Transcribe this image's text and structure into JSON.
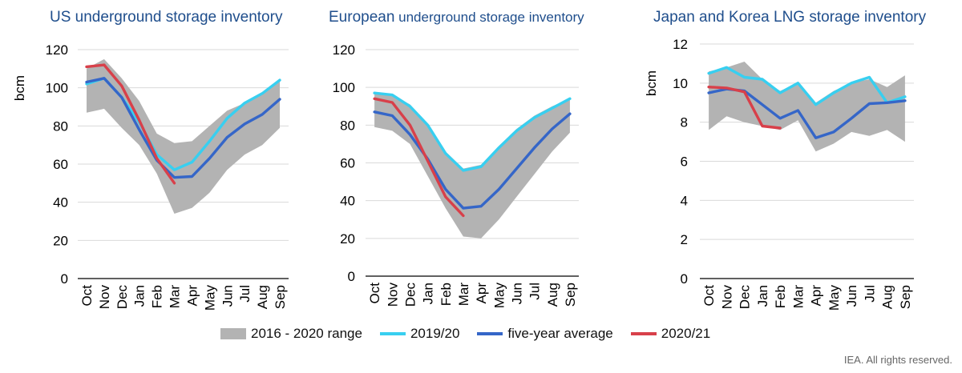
{
  "colors": {
    "range": "#b3b3b3",
    "s2019": "#38cff0",
    "avg": "#3566c8",
    "s2020": "#d8404a",
    "title": "#1f4e8c",
    "grid": "#d9d9d9",
    "axis": "#000000"
  },
  "legend": {
    "range_label": "2016 - 2020 range",
    "s2019_label": "2019/20",
    "avg_label": "five-year average",
    "s2020_label": "2020/21"
  },
  "credit": "IEA. All rights reserved.",
  "chart_data": [
    {
      "type": "line",
      "id": "us",
      "title_parts": [
        "US underground storage inventory"
      ],
      "ylabel": "bcm",
      "ylim": [
        0,
        120
      ],
      "yticks": [
        0,
        20,
        40,
        60,
        80,
        100,
        120
      ],
      "grid": true,
      "categories": [
        "Oct",
        "Nov",
        "Dec",
        "Jan",
        "Feb",
        "Mar",
        "Apr",
        "May",
        "Jun",
        "Jul",
        "Aug",
        "Sep"
      ],
      "range": {
        "name": "2016 - 2020 range",
        "low": [
          87,
          89,
          79,
          70,
          55,
          34,
          37,
          45,
          57,
          65,
          70,
          79
        ],
        "high": [
          110,
          115,
          105,
          93,
          76,
          71,
          72,
          80,
          88,
          92,
          97,
          104
        ]
      },
      "series": [
        {
          "name": "2019/20",
          "key": "s2019",
          "values": [
            102,
            105,
            95,
            82,
            65,
            57,
            61,
            72,
            84,
            92,
            97,
            104
          ]
        },
        {
          "name": "five-year average",
          "key": "avg",
          "values": [
            103,
            105,
            95,
            78,
            62,
            53,
            53.5,
            63,
            74,
            81,
            86,
            94
          ]
        },
        {
          "name": "2020/21",
          "key": "s2020",
          "values": [
            111,
            112,
            101,
            83,
            63,
            50,
            null,
            null,
            null,
            null,
            null,
            null
          ]
        }
      ]
    },
    {
      "type": "line",
      "id": "europe",
      "title_parts": [
        "European",
        "underground storage inventory"
      ],
      "ylabel": "",
      "ylim": [
        0,
        120
      ],
      "yticks": [
        0,
        20,
        40,
        60,
        80,
        100,
        120
      ],
      "grid": true,
      "categories": [
        "Oct",
        "Nov",
        "Dec",
        "Jan",
        "Feb",
        "Mar",
        "Apr",
        "May",
        "Jun",
        "Jul",
        "Aug",
        "Sep"
      ],
      "range": {
        "name": "2016 - 2020 range",
        "low": [
          79,
          77,
          70,
          53,
          36,
          21,
          20,
          30,
          42,
          54,
          66,
          76
        ],
        "high": [
          97,
          96,
          91,
          80,
          66,
          57,
          59,
          69,
          78,
          85,
          90,
          94
        ]
      },
      "series": [
        {
          "name": "2019/20",
          "key": "s2019",
          "values": [
            97,
            96,
            90,
            80,
            65,
            56,
            58,
            68,
            77,
            84,
            89,
            94
          ]
        },
        {
          "name": "five-year average",
          "key": "avg",
          "values": [
            87,
            85,
            75,
            62,
            46,
            36,
            37,
            46,
            57,
            68,
            78,
            86
          ]
        },
        {
          "name": "2020/21",
          "key": "s2020",
          "values": [
            94,
            92,
            80,
            61,
            42,
            32,
            null,
            null,
            null,
            null,
            null,
            null
          ]
        }
      ]
    },
    {
      "type": "line",
      "id": "japan-korea",
      "title_parts": [
        "Japan and Korea LNG storage inventory"
      ],
      "ylabel": "bcm",
      "ylim": [
        0,
        12
      ],
      "yticks": [
        0,
        2,
        4,
        6,
        8,
        10,
        12
      ],
      "grid": true,
      "categories": [
        "Oct",
        "Nov",
        "Dec",
        "Jan",
        "Feb",
        "Mar",
        "Apr",
        "May",
        "Jun",
        "Jul",
        "Aug",
        "Sep"
      ],
      "range": {
        "name": "2016 - 2020 range",
        "low": [
          7.6,
          8.3,
          8.0,
          7.8,
          7.6,
          8.1,
          6.5,
          6.9,
          7.5,
          7.3,
          7.6,
          7.0
        ],
        "high": [
          10.6,
          10.8,
          11.1,
          10.2,
          9.6,
          10.0,
          9.0,
          9.6,
          10.0,
          10.2,
          9.8,
          10.4
        ]
      },
      "series": [
        {
          "name": "2019/20",
          "key": "s2019",
          "values": [
            10.5,
            10.8,
            10.3,
            10.2,
            9.5,
            10.0,
            8.9,
            9.5,
            10.0,
            10.3,
            9.0,
            9.3
          ]
        },
        {
          "name": "five-year average",
          "key": "avg",
          "values": [
            9.5,
            9.7,
            9.6,
            8.9,
            8.2,
            8.6,
            7.2,
            7.5,
            8.2,
            8.95,
            9.0,
            9.1
          ]
        },
        {
          "name": "2020/21",
          "key": "s2020",
          "values": [
            9.8,
            9.75,
            9.55,
            7.8,
            7.7,
            null,
            null,
            null,
            null,
            null,
            null,
            null
          ]
        }
      ]
    }
  ]
}
